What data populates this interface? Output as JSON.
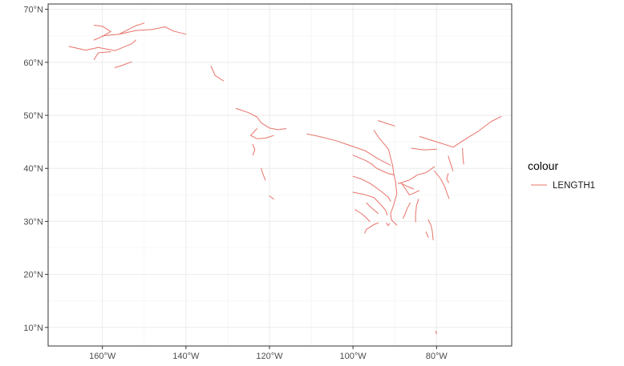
{
  "chart_data": {
    "type": "line",
    "title": "",
    "xlabel": "",
    "ylabel": "",
    "xlim": [
      -173,
      -62
    ],
    "ylim": [
      6.5,
      71
    ],
    "x_ticks": [
      -160,
      -140,
      -120,
      -100,
      -80
    ],
    "x_tick_labels": [
      "160°W",
      "140°W",
      "120°W",
      "100°W",
      "80°W"
    ],
    "y_ticks": [
      10,
      20,
      30,
      40,
      50,
      60,
      70
    ],
    "y_tick_labels": [
      "10°N",
      "20°N",
      "30°N",
      "40°N",
      "50°N",
      "60°N",
      "70°N"
    ],
    "grid": true,
    "legend": {
      "title": "colour",
      "placement": "right",
      "entries": [
        "LENGTH1"
      ]
    },
    "series": [
      {
        "name": "LENGTH1",
        "color": "#E8736A",
        "paths": [
          [
            [
              -168,
              63
            ],
            [
              -164,
              62.3
            ],
            [
              -161,
              62.8
            ],
            [
              -157,
              62.2
            ],
            [
              -153,
              63.5
            ],
            [
              -152,
              64.2
            ]
          ],
          [
            [
              -160,
              65
            ],
            [
              -156,
              65.3
            ],
            [
              -152,
              66
            ],
            [
              -148,
              66.2
            ],
            [
              -145,
              66.7
            ],
            [
              -143,
              65.9
            ],
            [
              -140,
              65.3
            ]
          ],
          [
            [
              -156,
              65.3
            ],
            [
              -154,
              66.1
            ],
            [
              -152,
              66.9
            ],
            [
              -150,
              67.4
            ]
          ],
          [
            [
              -162,
              67
            ],
            [
              -160,
              66.8
            ],
            [
              -158,
              65.8
            ],
            [
              -160,
              64.9
            ],
            [
              -162,
              64.2
            ]
          ],
          [
            [
              -158,
              62
            ],
            [
              -161,
              61.8
            ],
            [
              -162,
              60.5
            ]
          ],
          [
            [
              -157,
              59
            ],
            [
              -155,
              59.5
            ],
            [
              -153,
              60.1
            ]
          ],
          [
            [
              -134,
              59.3
            ],
            [
              -133,
              57.5
            ],
            [
              -131,
              56.5
            ]
          ],
          [
            [
              -128,
              51.3
            ],
            [
              -125,
              50.5
            ],
            [
              -123,
              49.7
            ],
            [
              -122,
              48.6
            ],
            [
              -120,
              47.6
            ],
            [
              -118,
              47.3
            ],
            [
              -116,
              47.5
            ]
          ],
          [
            [
              -123,
              47.5
            ],
            [
              -124.5,
              46.2
            ],
            [
              -123,
              45.6
            ],
            [
              -121,
              45.7
            ],
            [
              -119,
              46.2
            ]
          ],
          [
            [
              -124,
              44.5
            ],
            [
              -123.5,
              43.5
            ],
            [
              -124,
              42.5
            ]
          ],
          [
            [
              -122,
              40
            ],
            [
              -121.5,
              38.8
            ],
            [
              -121,
              37.8
            ]
          ],
          [
            [
              -120,
              34.8
            ],
            [
              -119,
              34.2
            ]
          ],
          [
            [
              -94,
              49
            ],
            [
              -92,
              48.5
            ],
            [
              -90,
              48
            ]
          ],
          [
            [
              -111,
              46.5
            ],
            [
              -108,
              46
            ],
            [
              -104,
              45.2
            ],
            [
              -101,
              44.4
            ],
            [
              -97,
              43.3
            ],
            [
              -94,
              41.8
            ],
            [
              -91,
              40.6
            ]
          ],
          [
            [
              -95,
              47.2
            ],
            [
              -94,
              46
            ],
            [
              -93,
              45
            ],
            [
              -91.5,
              43.6
            ],
            [
              -91,
              42
            ],
            [
              -90.5,
              40.5
            ],
            [
              -90.2,
              38.8
            ],
            [
              -89.8,
              37.5
            ],
            [
              -89.5,
              35.2
            ],
            [
              -90.3,
              33
            ],
            [
              -91,
              31.5
            ],
            [
              -90.8,
              30.3
            ],
            [
              -89.5,
              29.3
            ]
          ],
          [
            [
              -100,
              42.5
            ],
            [
              -97,
              41.5
            ],
            [
              -95.5,
              40.8
            ],
            [
              -94.5,
              40.1
            ],
            [
              -93,
              39.5
            ],
            [
              -91.5,
              39
            ],
            [
              -90.2,
              38.8
            ]
          ],
          [
            [
              -100,
              38.5
            ],
            [
              -98,
              38
            ],
            [
              -96,
              37.2
            ],
            [
              -94.5,
              36.4
            ],
            [
              -93,
              35.5
            ],
            [
              -91.5,
              34.5
            ],
            [
              -91,
              33.8
            ]
          ],
          [
            [
              -100,
              35.5
            ],
            [
              -97,
              35
            ],
            [
              -95,
              34.5
            ],
            [
              -93.5,
              33.3
            ],
            [
              -92.2,
              32.1
            ],
            [
              -91.8,
              31.2
            ]
          ],
          [
            [
              -89.2,
              37.1
            ],
            [
              -86.5,
              37.8
            ],
            [
              -84.5,
              38.8
            ],
            [
              -82.5,
              39.2
            ],
            [
              -80.5,
              40.3
            ]
          ],
          [
            [
              -88.3,
              37.1
            ],
            [
              -87.5,
              36.2
            ],
            [
              -86.5,
              35
            ],
            [
              -85.5,
              35.3
            ],
            [
              -84.2,
              35.8
            ]
          ],
          [
            [
              -88.5,
              37.2
            ],
            [
              -87,
              36.6
            ],
            [
              -85.5,
              36.1
            ]
          ],
          [
            [
              -88,
              30.6
            ],
            [
              -87.5,
              31.5
            ],
            [
              -87,
              32.5
            ],
            [
              -86.3,
              33.5
            ]
          ],
          [
            [
              -85,
              29.9
            ],
            [
              -85,
              31.5
            ],
            [
              -84.8,
              33
            ],
            [
              -84.3,
              34.2
            ]
          ],
          [
            [
              -82,
              30.3
            ],
            [
              -81.3,
              29.2
            ],
            [
              -81,
              28
            ],
            [
              -80.8,
              26.5
            ]
          ],
          [
            [
              -82.5,
              28
            ],
            [
              -82,
              27
            ]
          ],
          [
            [
              -73.5,
              40.8
            ],
            [
              -73.7,
              42.3
            ],
            [
              -73.8,
              43.8
            ]
          ],
          [
            [
              -76.1,
              39.5
            ],
            [
              -76.4,
              40.4
            ],
            [
              -76.8,
              41.3
            ],
            [
              -77.2,
              42.3
            ]
          ],
          [
            [
              -77.2,
              39
            ],
            [
              -77.6,
              38.1
            ],
            [
              -77.1,
              37.3
            ]
          ],
          [
            [
              -84,
              46
            ],
            [
              -80,
              45
            ],
            [
              -76,
              44
            ],
            [
              -72.5,
              45.8
            ],
            [
              -70,
              47
            ],
            [
              -67,
              48.8
            ],
            [
              -64.5,
              49.8
            ]
          ],
          [
            [
              -86,
              43.8
            ],
            [
              -83,
              43.5
            ],
            [
              -80,
              43.6
            ]
          ],
          [
            [
              -80.5,
              39.5
            ],
            [
              -79,
              38
            ],
            [
              -78,
              36.5
            ],
            [
              -77.5,
              35.3
            ],
            [
              -77,
              34.3
            ]
          ],
          [
            [
              -91.2,
              29.6
            ],
            [
              -91.6,
              29.2
            ],
            [
              -92,
              29.7
            ]
          ],
          [
            [
              -94,
              29.7
            ],
            [
              -95,
              29.4
            ],
            [
              -96.8,
              28.5
            ],
            [
              -97.2,
              27.8
            ]
          ],
          [
            [
              -96,
              30
            ],
            [
              -97,
              30.8
            ],
            [
              -98,
              31.5
            ],
            [
              -99.5,
              32.2
            ]
          ],
          [
            [
              -94,
              31.5
            ],
            [
              -95.5,
              32.5
            ],
            [
              -96.8,
              33.5
            ]
          ],
          [
            [
              -80.2,
              9.3
            ],
            [
              -80,
              8.8
            ]
          ]
        ]
      }
    ]
  }
}
